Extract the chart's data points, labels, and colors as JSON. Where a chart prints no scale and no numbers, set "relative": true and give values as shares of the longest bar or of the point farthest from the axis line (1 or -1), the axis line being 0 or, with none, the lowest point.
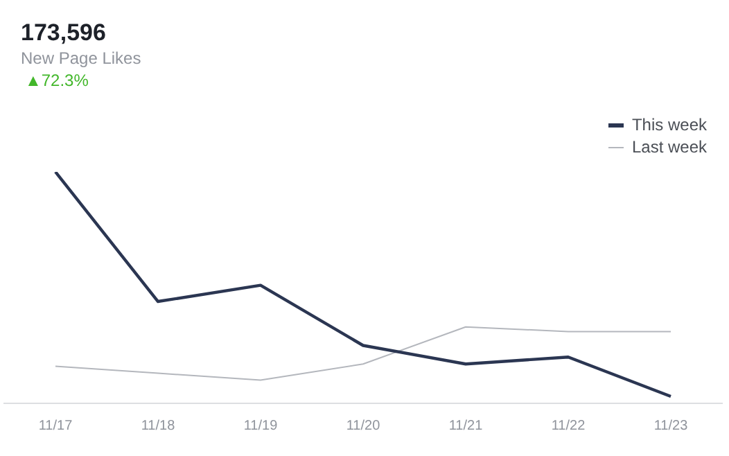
{
  "chart_data": {
    "type": "line",
    "title": "173,596",
    "subtitle": "New Page Likes",
    "annotations": [
      "▲72.3%"
    ],
    "categories": [
      "11/17",
      "11/18",
      "11/19",
      "11/20",
      "11/21",
      "11/22",
      "11/23"
    ],
    "relative": true,
    "legend": "top right",
    "marker": "none",
    "grid": false,
    "series": [
      {
        "name": "This week",
        "color": "#2b3652",
        "values": [
          1,
          0.44,
          0.51,
          0.25,
          0.17,
          0.2,
          0.03
        ]
      },
      {
        "name": "Last week",
        "color": "#b4b7bd",
        "values": [
          0.16,
          0.13,
          0.1,
          0.17,
          0.33,
          0.31,
          0.31
        ]
      }
    ]
  }
}
